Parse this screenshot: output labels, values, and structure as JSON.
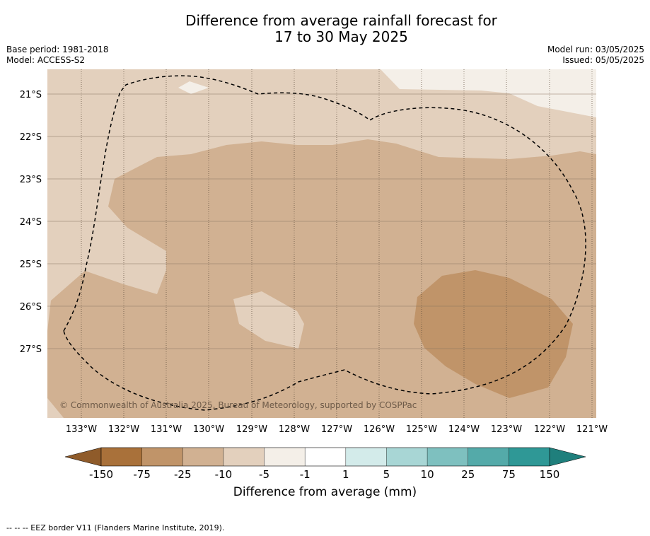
{
  "header": {
    "title_line1": "Difference from average rainfall forecast for",
    "title_line2": "17 to 30 May 2025",
    "base_period": "Base period: 1981-2018",
    "model": "Model: ACCESS-S2",
    "model_run": "Model run: 03/05/2025",
    "issued": "Issued: 05/05/2025"
  },
  "map": {
    "lat_labels": [
      "21°S",
      "22°S",
      "23°S",
      "24°S",
      "25°S",
      "26°S",
      "27°S"
    ],
    "lon_labels": [
      "133°W",
      "132°W",
      "131°W",
      "130°W",
      "129°W",
      "128°W",
      "127°W",
      "126°W",
      "125°W",
      "124°W",
      "123°W",
      "122°W",
      "121°W"
    ],
    "copyright": "© Commonwealth of Australia 2025, Bureau of Meteorology, supported by COSPPac",
    "colors": {
      "lt_-25": "#c09469",
      "-25_-10": "#d1b192",
      "-10_-5": "#e3d0bd",
      "-5_-1": "#f4efe8",
      "border": "#000000"
    }
  },
  "colorbar": {
    "tick_labels": [
      "-150",
      "-75",
      "-25",
      "-10",
      "-5",
      "-1",
      "1",
      "5",
      "10",
      "25",
      "75",
      "150"
    ],
    "colors": [
      "#a9713a",
      "#c09469",
      "#d1b192",
      "#e3d0bd",
      "#f4efe8",
      "#ffffff",
      "#d3ebea",
      "#a8d6d5",
      "#7ec0bf",
      "#54aaa9",
      "#2f9896"
    ],
    "under_color": "#8f5b2a",
    "over_color": "#1f7f7c",
    "title": "Difference from average (mm)"
  },
  "footer": {
    "legend": "--  --  -- EEZ border V11 (Flanders Marine Institute, 2019)."
  }
}
